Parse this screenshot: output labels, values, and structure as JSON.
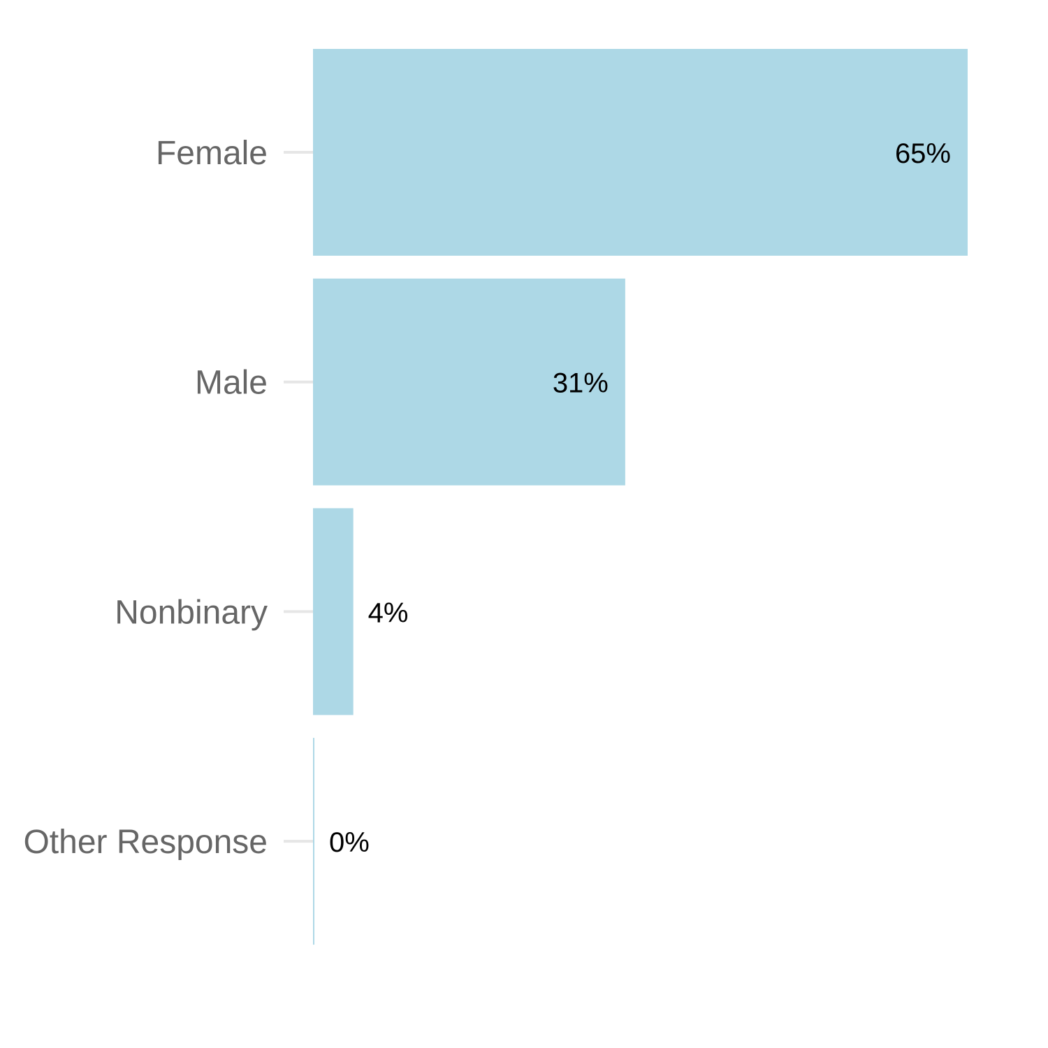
{
  "chart_data": {
    "type": "bar",
    "orientation": "horizontal",
    "categories": [
      "Female",
      "Male",
      "Nonbinary",
      "Other Response"
    ],
    "values": [
      65,
      31,
      4,
      0
    ],
    "data_labels": [
      "65%",
      "31%",
      "4%",
      "0%"
    ],
    "title": "",
    "xlabel": "",
    "ylabel": "",
    "xlim": [
      0,
      65
    ],
    "grid": false,
    "legend": "none",
    "bar_color": "#add8e6",
    "label_color": "#666666",
    "tick_color": "#e6e6e6"
  }
}
